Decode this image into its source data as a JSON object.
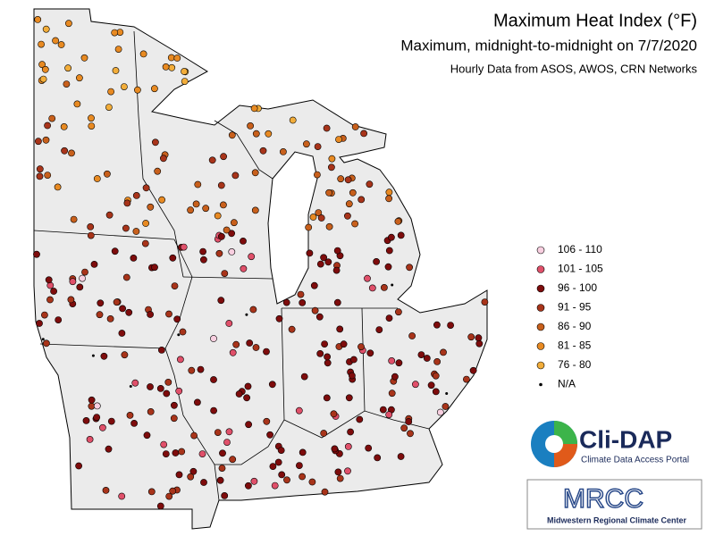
{
  "header": {
    "title": "Maximum Heat Index (°F)",
    "subtitle": "Maximum, midnight-to-midnight on 7/7/2020",
    "source": "Hourly Data from ASOS, AWOS, CRN Networks"
  },
  "legend": {
    "items": [
      {
        "label": "106 - 110",
        "color": "#f8cfe0"
      },
      {
        "label": "101 - 105",
        "color": "#e0506a"
      },
      {
        "label": "96 - 100",
        "color": "#7e0c0c"
      },
      {
        "label": "91 - 95",
        "color": "#a8341a"
      },
      {
        "label": "86 - 90",
        "color": "#c8601c"
      },
      {
        "label": "81 - 85",
        "color": "#e88a22"
      },
      {
        "label": "76 - 80",
        "color": "#f2ad3a"
      },
      {
        "label": "N/A",
        "color": "#000000"
      }
    ]
  },
  "logos": {
    "clidap": {
      "name": "Cli-DAP",
      "tagline": "Climate Data Access Portal"
    },
    "mrcc": {
      "name": "MRCC",
      "tagline": "Midwestern Regional Climate Center"
    }
  }
}
